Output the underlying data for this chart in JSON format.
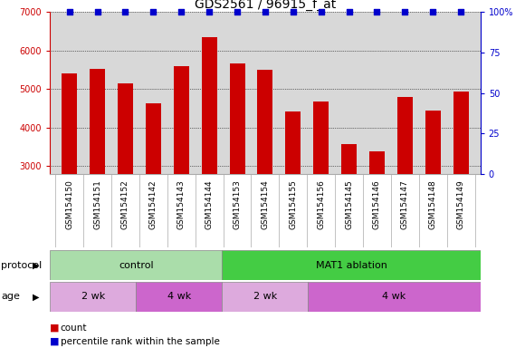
{
  "title": "GDS2561 / 96915_f_at",
  "samples": [
    "GSM154150",
    "GSM154151",
    "GSM154152",
    "GSM154142",
    "GSM154143",
    "GSM154144",
    "GSM154153",
    "GSM154154",
    "GSM154155",
    "GSM154156",
    "GSM154145",
    "GSM154146",
    "GSM154147",
    "GSM154148",
    "GSM154149"
  ],
  "counts": [
    5420,
    5520,
    5150,
    4640,
    5600,
    6350,
    5680,
    5500,
    4420,
    4680,
    3580,
    3380,
    4800,
    4450,
    4950
  ],
  "percentiles": [
    100,
    100,
    100,
    100,
    100,
    100,
    100,
    100,
    100,
    100,
    100,
    100,
    100,
    100,
    100
  ],
  "bar_color": "#cc0000",
  "dot_color": "#0000cc",
  "ylim_left": [
    2800,
    7000
  ],
  "ylim_right": [
    0,
    100
  ],
  "yticks_left": [
    3000,
    4000,
    5000,
    6000,
    7000
  ],
  "yticks_right": [
    0,
    25,
    50,
    75,
    100
  ],
  "left_tick_color": "#cc0000",
  "right_tick_color": "#0000cc",
  "protocol_groups": [
    {
      "label": "control",
      "start": 0,
      "end": 6,
      "color": "#aaddaa"
    },
    {
      "label": "MAT1 ablation",
      "start": 6,
      "end": 15,
      "color": "#44cc44"
    }
  ],
  "age_groups": [
    {
      "label": "2 wk",
      "start": 0,
      "end": 3,
      "color": "#ddaadd"
    },
    {
      "label": "4 wk",
      "start": 3,
      "end": 6,
      "color": "#cc66cc"
    },
    {
      "label": "2 wk",
      "start": 6,
      "end": 9,
      "color": "#ddaadd"
    },
    {
      "label": "4 wk",
      "start": 9,
      "end": 15,
      "color": "#cc66cc"
    }
  ],
  "protocol_label": "protocol",
  "age_label": "age",
  "legend_count_label": "count",
  "legend_pct_label": "percentile rank within the sample",
  "bg_color": "#ffffff",
  "plot_bg_color": "#d8d8d8",
  "grid_color": "#000000",
  "title_fontsize": 10,
  "tick_fontsize": 7,
  "label_fontsize": 8,
  "dot_size": 18
}
